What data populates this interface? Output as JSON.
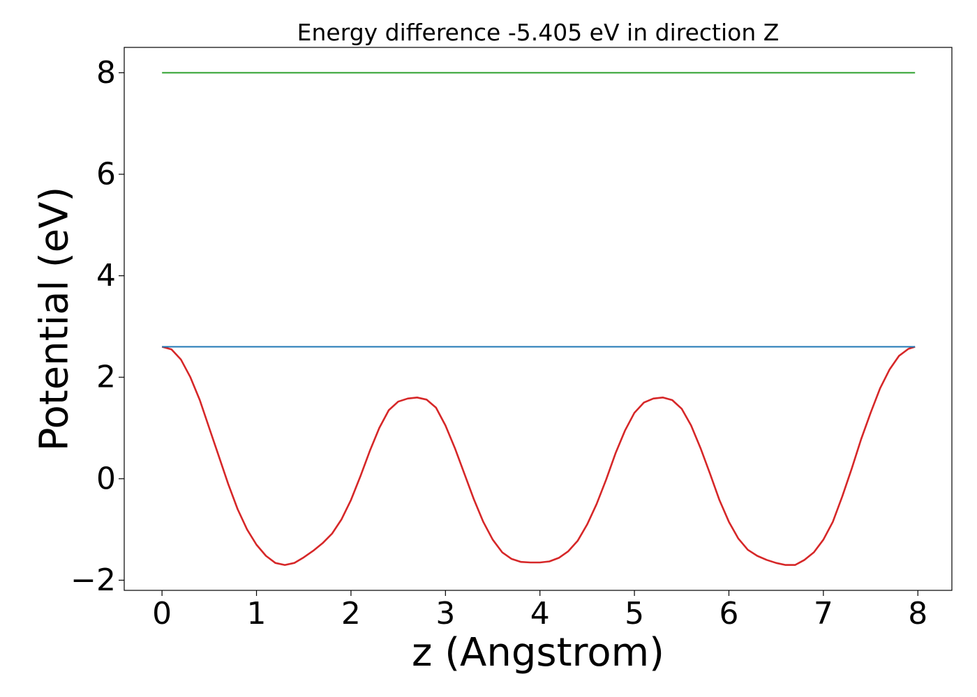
{
  "chart_data": {
    "type": "line",
    "title": "Energy difference -5.405 eV in direction Z",
    "xlabel": "z (Angstrom)",
    "ylabel": "Potential (eV)",
    "xlim": [
      -0.4,
      8.36
    ],
    "ylim": [
      -2.2,
      8.5
    ],
    "grid": false,
    "legend": "none",
    "x_ticks": [
      {
        "value": 0,
        "label": "0"
      },
      {
        "value": 1,
        "label": "1"
      },
      {
        "value": 2,
        "label": "2"
      },
      {
        "value": 3,
        "label": "3"
      },
      {
        "value": 4,
        "label": "4"
      },
      {
        "value": 5,
        "label": "5"
      },
      {
        "value": 6,
        "label": "6"
      },
      {
        "value": 7,
        "label": "7"
      },
      {
        "value": 8,
        "label": "8"
      }
    ],
    "y_ticks": [
      {
        "value": -2,
        "label": "−2"
      },
      {
        "value": 0,
        "label": "0"
      },
      {
        "value": 2,
        "label": "2"
      },
      {
        "value": 4,
        "label": "4"
      },
      {
        "value": 6,
        "label": "6"
      },
      {
        "value": 8,
        "label": "8"
      }
    ],
    "series": [
      {
        "color": "#d62728",
        "x": [
          0,
          0.1,
          0.2,
          0.3,
          0.4,
          0.5,
          0.6,
          0.7,
          0.8,
          0.9,
          1.0,
          1.1,
          1.2,
          1.3,
          1.4,
          1.5,
          1.6,
          1.7,
          1.8,
          1.9,
          2.0,
          2.1,
          2.2,
          2.3,
          2.4,
          2.5,
          2.6,
          2.7,
          2.8,
          2.9,
          3.0,
          3.1,
          3.2,
          3.3,
          3.4,
          3.5,
          3.6,
          3.7,
          3.8,
          3.9,
          4.0,
          4.1,
          4.2,
          4.3,
          4.4,
          4.5,
          4.6,
          4.7,
          4.8,
          4.9,
          5.0,
          5.1,
          5.2,
          5.3,
          5.4,
          5.5,
          5.6,
          5.7,
          5.8,
          5.9,
          6.0,
          6.1,
          6.2,
          6.3,
          6.4,
          6.5,
          6.6,
          6.7,
          6.8,
          6.9,
          7.0,
          7.1,
          7.2,
          7.3,
          7.4,
          7.5,
          7.6,
          7.7,
          7.8,
          7.9,
          7.97
        ],
        "y": [
          2.6,
          2.55,
          2.35,
          2.0,
          1.55,
          1.0,
          0.45,
          -0.1,
          -0.6,
          -1.0,
          -1.3,
          -1.52,
          -1.66,
          -1.7,
          -1.66,
          -1.55,
          -1.42,
          -1.27,
          -1.08,
          -0.8,
          -0.42,
          0.05,
          0.55,
          1.0,
          1.35,
          1.52,
          1.58,
          1.6,
          1.56,
          1.4,
          1.05,
          0.6,
          0.1,
          -0.4,
          -0.85,
          -1.2,
          -1.45,
          -1.58,
          -1.64,
          -1.65,
          -1.65,
          -1.63,
          -1.56,
          -1.43,
          -1.22,
          -0.9,
          -0.5,
          -0.02,
          0.5,
          0.95,
          1.3,
          1.5,
          1.58,
          1.6,
          1.55,
          1.38,
          1.05,
          0.6,
          0.1,
          -0.42,
          -0.85,
          -1.18,
          -1.4,
          -1.52,
          -1.6,
          -1.66,
          -1.7,
          -1.7,
          -1.6,
          -1.45,
          -1.2,
          -0.85,
          -0.35,
          0.2,
          0.78,
          1.3,
          1.78,
          2.15,
          2.42,
          2.56,
          2.6
        ]
      },
      {
        "color": "#1f77b4",
        "x": [
          0,
          7.97
        ],
        "y": [
          2.6,
          2.6
        ]
      },
      {
        "color": "#2ca02c",
        "x": [
          0,
          7.97
        ],
        "y": [
          8.0,
          8.0
        ]
      }
    ]
  }
}
